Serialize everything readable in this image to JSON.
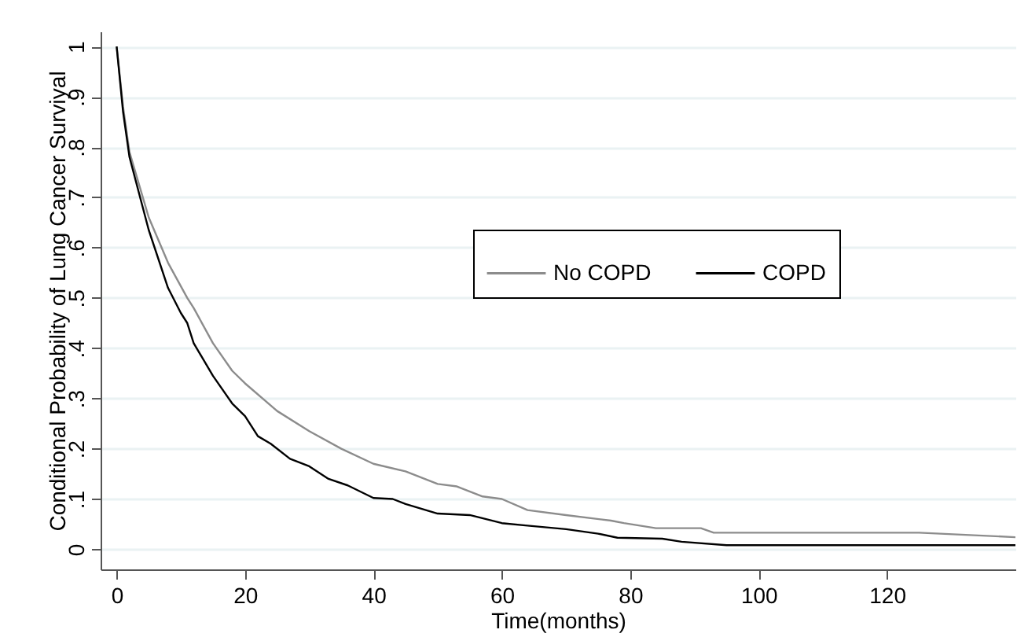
{
  "chart_data": {
    "type": "line",
    "xlabel": "Time(months)",
    "ylabel": "Conditional Probability of Lung Cancer Surviyal",
    "x": [
      0,
      1,
      2,
      5,
      8,
      10,
      11,
      12,
      15,
      18,
      20,
      22,
      24,
      27,
      30,
      33,
      36,
      40,
      43,
      45,
      50,
      55,
      60,
      64,
      70,
      75,
      78,
      85,
      88,
      95,
      140
    ],
    "series": [
      {
        "name": "No COPD",
        "color": "#8c8c8c",
        "x": [
          0,
          1,
          2,
          5,
          8,
          11,
          12,
          15,
          18,
          20,
          25,
          30,
          35,
          40,
          45,
          50,
          53,
          57,
          60,
          64,
          70,
          77,
          79,
          84,
          91,
          93,
          125,
          140
        ],
        "values": [
          1,
          0.88,
          0.79,
          0.66,
          0.57,
          0.5,
          0.48,
          0.41,
          0.355,
          0.33,
          0.275,
          0.235,
          0.2,
          0.17,
          0.155,
          0.13,
          0.125,
          0.105,
          0.1,
          0.078,
          0.068,
          0.057,
          0.052,
          0.042,
          0.042,
          0.033,
          0.033,
          0.024
        ]
      },
      {
        "name": "COPD",
        "color": "#000000",
        "values": [
          1,
          0.87,
          0.78,
          0.635,
          0.52,
          0.47,
          0.45,
          0.41,
          0.345,
          0.29,
          0.265,
          0.225,
          0.21,
          0.18,
          0.165,
          0.14,
          0.127,
          0.102,
          0.1,
          0.09,
          0.071,
          0.068,
          0.052,
          0.047,
          0.04,
          0.031,
          0.023,
          0.021,
          0.015,
          0.008,
          0.008
        ]
      }
    ],
    "xlim": [
      -2.5,
      140
    ],
    "xticks": [
      0,
      20,
      40,
      60,
      80,
      100,
      120
    ],
    "ylim": [
      -0.04,
      1.03
    ],
    "yticks": [
      0,
      {
        "value": 0.1,
        "label": ".1"
      },
      {
        "value": 0.2,
        "label": ".2"
      },
      {
        "value": 0.3,
        "label": ".3"
      },
      {
        "value": 0.4,
        "label": ".4"
      },
      {
        "value": 0.5,
        "label": ".5"
      },
      {
        "value": 0.6,
        "label": ".6"
      },
      {
        "value": 0.7,
        "label": ".7"
      },
      {
        "value": 0.8,
        "label": ".8"
      },
      {
        "value": 0.9,
        "label": ".9"
      },
      1
    ],
    "grid": "y",
    "legend": "right",
    "marker": "none",
    "line_style": "solid"
  }
}
